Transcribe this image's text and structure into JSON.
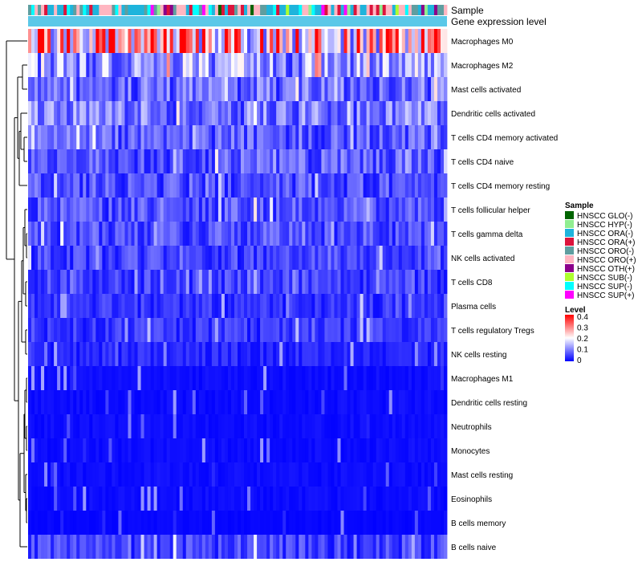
{
  "chart_data": {
    "type": "heatmap",
    "title": "",
    "annotation_rows": [
      "Sample",
      "Gene expression level"
    ],
    "rows": [
      "Macrophages M0",
      "Macrophages M2",
      "Mast cells activated",
      "Dendritic cells activated",
      "T cells CD4 memory activated",
      "T cells CD4 naive",
      "T cells CD4 memory resting",
      "T cells follicular helper",
      "T cells gamma delta",
      "NK cells activated",
      "T cells CD8",
      "Plasma cells",
      "T cells regulatory  Tregs",
      "NK cells resting",
      "Macrophages M1",
      "Dendritic cells resting",
      "Neutrophils",
      "Monocytes",
      "Mast cells resting",
      "Eosinophils",
      "B cells memory",
      "B cells naive"
    ],
    "row_levels": [
      0.26,
      0.12,
      0.08,
      0.09,
      0.07,
      0.07,
      0.06,
      0.06,
      0.06,
      0.05,
      0.05,
      0.04,
      0.04,
      0.03,
      0.01,
      0.01,
      0.01,
      0.01,
      0.01,
      0.01,
      0.005,
      0.05
    ],
    "n_samples": 130,
    "legend_sample": {
      "title": "Sample",
      "entries": [
        {
          "label": "HNSCC GLO(-)",
          "color": "#006400"
        },
        {
          "label": "HNSCC HYP(-)",
          "color": "#90EE90"
        },
        {
          "label": "HNSCC ORA(-)",
          "color": "#1EB4DC"
        },
        {
          "label": "HNSCC ORA(+)",
          "color": "#DC143C"
        },
        {
          "label": "HNSCC ORO(-)",
          "color": "#5F9EA0"
        },
        {
          "label": "HNSCC ORO(+)",
          "color": "#FFB6C1"
        },
        {
          "label": "HNSCC OTH(+)",
          "color": "#8B008B"
        },
        {
          "label": "HNSCC SUB(-)",
          "color": "#ADFF2F"
        },
        {
          "label": "HNSCC SUP(-)",
          "color": "#00FFFF"
        },
        {
          "label": "HNSCC SUP(+)",
          "color": "#FF00FF"
        }
      ]
    },
    "legend_level": {
      "title": "Level",
      "ticks": [
        "0.4",
        "0.3",
        "0.2",
        "0.1",
        "0"
      ],
      "range": [
        0,
        0.4
      ],
      "colors": [
        "#0000FF",
        "#FFFFFF",
        "#FF0000"
      ]
    },
    "expression_bar_color": "#5BC8E8"
  }
}
